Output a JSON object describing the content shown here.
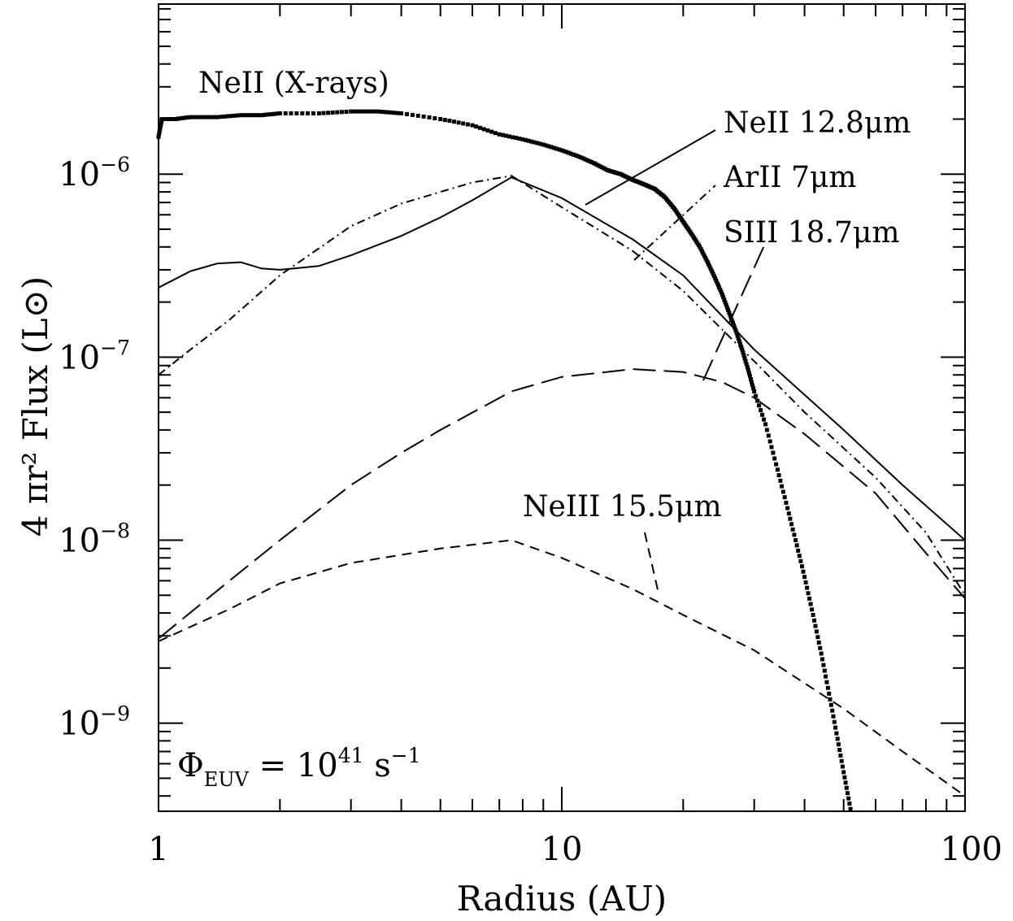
{
  "chart_data": {
    "type": "line",
    "title": "",
    "xlabel": "Radius (AU)",
    "ylabel": "4 πr² Flux (L⊙)",
    "xscale": "log",
    "yscale": "log",
    "xlim": [
      1,
      100
    ],
    "ylim": [
      3.3e-10,
      8.5e-06
    ],
    "x_ticks": [
      {
        "value": 1,
        "label": "1"
      },
      {
        "value": 10,
        "label": "10"
      },
      {
        "value": 100,
        "label": "100"
      }
    ],
    "y_ticks": [
      {
        "value": 1e-09,
        "base": "10",
        "exp": "−9"
      },
      {
        "value": 1e-08,
        "base": "10",
        "exp": "−8"
      },
      {
        "value": 1e-07,
        "base": "10",
        "exp": "−7"
      },
      {
        "value": 1e-06,
        "base": "10",
        "exp": "−6"
      }
    ],
    "grid": false,
    "legend": "none",
    "series": [
      {
        "name": "NeII (X-rays)",
        "style": "dotted",
        "points": [
          [
            1.0,
            1.6e-06
          ],
          [
            1.02,
            2e-06
          ],
          [
            1.1,
            2e-06
          ],
          [
            1.2,
            2.05e-06
          ],
          [
            1.4,
            2.05e-06
          ],
          [
            1.6,
            2.1e-06
          ],
          [
            1.8,
            2.1e-06
          ],
          [
            2.0,
            2.15e-06
          ],
          [
            2.5,
            2.15e-06
          ],
          [
            3.0,
            2.2e-06
          ],
          [
            3.5,
            2.2e-06
          ],
          [
            4.0,
            2.15e-06
          ],
          [
            5.0,
            2e-06
          ],
          [
            6.0,
            1.85e-06
          ],
          [
            7.0,
            1.65e-06
          ],
          [
            8.0,
            1.55e-06
          ],
          [
            9.0,
            1.45e-06
          ],
          [
            10.0,
            1.35e-06
          ],
          [
            11.0,
            1.25e-06
          ],
          [
            12.0,
            1.15e-06
          ],
          [
            13.0,
            1.05e-06
          ],
          [
            14.0,
            1e-06
          ],
          [
            15.0,
            9.3e-07
          ],
          [
            16.0,
            8.8e-07
          ],
          [
            17.0,
            8.3e-07
          ],
          [
            18.0,
            7.5e-07
          ],
          [
            19.0,
            6.5e-07
          ],
          [
            20.0,
            5.5e-07
          ],
          [
            21.0,
            4.7e-07
          ],
          [
            22.0,
            4e-07
          ],
          [
            23.0,
            3.3e-07
          ],
          [
            24.0,
            2.7e-07
          ],
          [
            25.0,
            2.2e-07
          ],
          [
            26.0,
            1.75e-07
          ],
          [
            27.0,
            1.4e-07
          ],
          [
            28.0,
            1.1e-07
          ],
          [
            29.0,
            8.5e-08
          ],
          [
            30.0,
            6.5e-08
          ],
          [
            32.0,
            4.3e-08
          ],
          [
            34.0,
            2.6e-08
          ],
          [
            36.0,
            1.6e-08
          ],
          [
            38.0,
            1e-08
          ],
          [
            40.0,
            6.3e-09
          ],
          [
            42.0,
            3.9e-09
          ],
          [
            44.0,
            2.4e-09
          ],
          [
            46.0,
            1.45e-09
          ],
          [
            48.0,
            8.8e-10
          ],
          [
            50.0,
            5.4e-10
          ],
          [
            52.0,
            3.4e-10
          ]
        ]
      },
      {
        "name": "NeII 12.8μm",
        "style": "solid",
        "points": [
          [
            1.0,
            2.4e-07
          ],
          [
            1.2,
            2.95e-07
          ],
          [
            1.4,
            3.25e-07
          ],
          [
            1.6,
            3.3e-07
          ],
          [
            1.8,
            3.05e-07
          ],
          [
            2.0,
            3e-07
          ],
          [
            2.5,
            3.15e-07
          ],
          [
            3.0,
            3.6e-07
          ],
          [
            4.0,
            4.6e-07
          ],
          [
            5.0,
            5.8e-07
          ],
          [
            6.0,
            7.2e-07
          ],
          [
            7.5,
            9.6e-07
          ],
          [
            10.0,
            7.4e-07
          ],
          [
            15.0,
            4.4e-07
          ],
          [
            20.0,
            2.8e-07
          ],
          [
            30.0,
            1.1e-07
          ],
          [
            50.0,
            4e-08
          ],
          [
            70.0,
            2e-08
          ],
          [
            100.0,
            1e-08
          ]
        ]
      },
      {
        "name": "ArII 7μm",
        "style": "dash-dot",
        "points": [
          [
            1.0,
            8e-08
          ],
          [
            1.2,
            1.1e-07
          ],
          [
            1.5,
            1.6e-07
          ],
          [
            2.0,
            2.8e-07
          ],
          [
            3.0,
            5.2e-07
          ],
          [
            4.0,
            6.9e-07
          ],
          [
            5.0,
            8e-07
          ],
          [
            6.0,
            9e-07
          ],
          [
            7.5,
            9.8e-07
          ],
          [
            10.0,
            6.6e-07
          ],
          [
            15.0,
            3.8e-07
          ],
          [
            20.0,
            2.3e-07
          ],
          [
            30.0,
            9.5e-08
          ],
          [
            40.0,
            5e-08
          ],
          [
            60.0,
            2.2e-08
          ],
          [
            80.0,
            1.1e-08
          ],
          [
            100.0,
            5e-09
          ]
        ]
      },
      {
        "name": "SIII 18.7μm",
        "style": "long-dash",
        "points": [
          [
            1.0,
            2.9e-09
          ],
          [
            1.5,
            6e-09
          ],
          [
            2.0,
            1e-08
          ],
          [
            3.0,
            2e-08
          ],
          [
            4.0,
            3e-08
          ],
          [
            5.0,
            4e-08
          ],
          [
            7.5,
            6.5e-08
          ],
          [
            10.0,
            7.8e-08
          ],
          [
            15.0,
            8.6e-08
          ],
          [
            20.0,
            8.3e-08
          ],
          [
            25.0,
            7.3e-08
          ],
          [
            30.0,
            6e-08
          ],
          [
            40.0,
            3.8e-08
          ],
          [
            60.0,
            1.8e-08
          ],
          [
            80.0,
            8.5e-09
          ],
          [
            100.0,
            4.8e-09
          ]
        ]
      },
      {
        "name": "NeIII 15.5μm",
        "style": "short-dash",
        "points": [
          [
            1.0,
            2.8e-09
          ],
          [
            1.5,
            4.2e-09
          ],
          [
            2.0,
            5.8e-09
          ],
          [
            3.0,
            7.5e-09
          ],
          [
            5.0,
            9e-09
          ],
          [
            7.5,
            1e-08
          ],
          [
            10.0,
            8e-09
          ],
          [
            15.0,
            5.4e-09
          ],
          [
            20.0,
            3.9e-09
          ],
          [
            30.0,
            2.5e-09
          ],
          [
            50.0,
            1.2e-09
          ],
          [
            70.0,
            7e-10
          ],
          [
            100.0,
            4e-10
          ]
        ]
      }
    ],
    "annotations": [
      {
        "text": "NeII (X-rays)"
      },
      {
        "text": "NeII 12.8μm"
      },
      {
        "text": "ArII 7μm"
      },
      {
        "text": "SIII 18.7μm"
      },
      {
        "text": "NeIII 15.5μm"
      }
    ],
    "formula": {
      "symbol": "Φ",
      "subscript": "EUV",
      "equals": " = ",
      "base": "10",
      "exponent": "41",
      "unit": " s",
      "unit_exp": "−1"
    }
  }
}
